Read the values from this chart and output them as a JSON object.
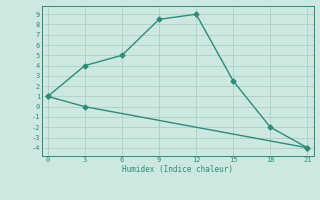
{
  "xlabel": "Humidex (Indice chaleur)",
  "line1_x": [
    0,
    3,
    6,
    9,
    12,
    15,
    18,
    21
  ],
  "line1_y": [
    1,
    4,
    5,
    8.5,
    9,
    2.5,
    -2,
    -4
  ],
  "line2_x": [
    0,
    3,
    21
  ],
  "line2_y": [
    1,
    0,
    -4
  ],
  "color": "#2e8b7a",
  "bg_color": "#cce8e0",
  "grid_color": "#aacfc8",
  "xlim": [
    -0.5,
    21.5
  ],
  "ylim": [
    -4.8,
    9.8
  ],
  "xticks": [
    0,
    3,
    6,
    9,
    12,
    15,
    18,
    21
  ],
  "yticks": [
    -4,
    -3,
    -2,
    -1,
    0,
    1,
    2,
    3,
    4,
    5,
    6,
    7,
    8,
    9
  ],
  "marker": "D",
  "markersize": 2.5,
  "linewidth": 1.0
}
